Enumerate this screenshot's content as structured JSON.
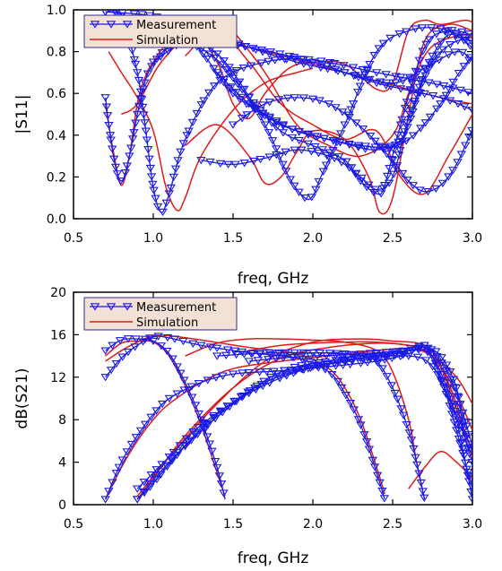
{
  "colors": {
    "measurement": "#1a1ae6",
    "simulation": "#e01b1b",
    "legend_bg": "#f3e1d6"
  },
  "chart_data": [
    {
      "type": "line",
      "xlabel": "freq, GHz",
      "ylabel": "|S11|",
      "xlim": [
        0.5,
        3.0
      ],
      "ylim": [
        0.0,
        1.0
      ],
      "xticks": [
        0.5,
        1.0,
        1.5,
        2.0,
        2.5,
        3.0
      ],
      "yticks": [
        0.0,
        0.2,
        0.4,
        0.6,
        0.8,
        1.0
      ],
      "xtick_labels": [
        "0.5",
        "1.0",
        "1.5",
        "2.0",
        "2.5",
        "3.0"
      ],
      "ytick_labels": [
        "0.0",
        "0.2",
        "0.4",
        "0.6",
        "0.8",
        "1.0"
      ],
      "legend": {
        "placement": "top-left",
        "entries": [
          "Measurement",
          "Simulation"
        ]
      },
      "series": [
        {
          "kind": "measurement",
          "x": [
            0.7,
            0.75,
            0.8,
            0.85,
            0.9,
            0.95,
            1.0,
            1.1,
            1.3,
            1.6,
            2.0,
            2.4,
            2.8,
            3.0
          ],
          "y": [
            0.58,
            0.3,
            0.18,
            0.3,
            0.5,
            0.66,
            0.74,
            0.82,
            0.85,
            0.82,
            0.75,
            0.65,
            0.58,
            0.52
          ]
        },
        {
          "kind": "measurement",
          "x": [
            0.7,
            0.8,
            0.9,
            0.95,
            1.0,
            1.05,
            1.1,
            1.2,
            1.4,
            1.7,
            2.0,
            2.4,
            2.8,
            3.0
          ],
          "y": [
            0.99,
            0.97,
            0.7,
            0.44,
            0.15,
            0.03,
            0.12,
            0.38,
            0.65,
            0.75,
            0.76,
            0.7,
            0.64,
            0.6
          ]
        },
        {
          "kind": "measurement",
          "x": [
            0.7,
            1.0,
            1.3,
            1.6,
            1.9,
            2.2,
            2.5,
            2.7,
            2.9,
            3.0
          ],
          "y": [
            0.99,
            0.97,
            0.9,
            0.82,
            0.75,
            0.7,
            0.65,
            0.72,
            0.8,
            0.76
          ]
        },
        {
          "kind": "measurement",
          "x": [
            1.0,
            1.2,
            1.3,
            1.5,
            1.7,
            1.9,
            2.1,
            2.3,
            2.5,
            2.6,
            2.7,
            2.85,
            3.0
          ],
          "y": [
            0.75,
            0.85,
            0.8,
            0.6,
            0.5,
            0.42,
            0.38,
            0.35,
            0.35,
            0.45,
            0.7,
            0.88,
            0.82
          ]
        },
        {
          "kind": "measurement",
          "x": [
            1.2,
            1.35,
            1.5,
            1.7,
            1.85,
            1.95,
            2.0,
            2.05,
            2.2,
            2.4,
            2.6,
            2.8,
            3.0
          ],
          "y": [
            0.85,
            0.82,
            0.7,
            0.45,
            0.2,
            0.1,
            0.11,
            0.2,
            0.45,
            0.8,
            0.9,
            0.91,
            0.85
          ]
        },
        {
          "kind": "measurement",
          "x": [
            1.2,
            1.4,
            1.6,
            1.8,
            2.0,
            2.2,
            2.3,
            2.4,
            2.45,
            2.55,
            2.7,
            2.85,
            3.0
          ],
          "y": [
            0.86,
            0.76,
            0.58,
            0.42,
            0.35,
            0.28,
            0.18,
            0.12,
            0.16,
            0.45,
            0.82,
            0.9,
            0.88
          ]
        },
        {
          "kind": "measurement",
          "x": [
            1.5,
            1.7,
            1.9,
            2.1,
            2.3,
            2.5,
            2.6,
            2.7,
            2.8,
            2.9,
            3.0
          ],
          "y": [
            0.45,
            0.55,
            0.58,
            0.55,
            0.44,
            0.28,
            0.18,
            0.13,
            0.16,
            0.26,
            0.43
          ]
        },
        {
          "kind": "measurement",
          "x": [
            1.3,
            1.5,
            1.7,
            1.9,
            2.1,
            2.2,
            2.3,
            2.4,
            2.5,
            2.6,
            2.75,
            2.9,
            3.0
          ],
          "y": [
            0.28,
            0.26,
            0.29,
            0.33,
            0.3,
            0.26,
            0.2,
            0.14,
            0.2,
            0.48,
            0.75,
            0.85,
            0.85
          ]
        },
        {
          "kind": "measurement",
          "x": [
            1.4,
            1.6,
            1.8,
            2.0,
            2.2,
            2.4,
            2.6,
            2.8,
            2.9,
            3.0
          ],
          "y": [
            0.7,
            0.55,
            0.45,
            0.4,
            0.36,
            0.33,
            0.38,
            0.55,
            0.68,
            0.78
          ]
        },
        {
          "kind": "simulation",
          "x": [
            0.7,
            0.75,
            0.8,
            0.85,
            0.9,
            0.95,
            1.0,
            1.1,
            1.3,
            1.6,
            2.0,
            2.4,
            2.8,
            3.0
          ],
          "y": [
            0.55,
            0.32,
            0.16,
            0.3,
            0.55,
            0.68,
            0.75,
            0.84,
            0.86,
            0.82,
            0.74,
            0.66,
            0.58,
            0.55
          ]
        },
        {
          "kind": "simulation",
          "x": [
            0.72,
            0.8,
            0.9,
            1.0,
            1.08,
            1.15,
            1.2,
            1.3,
            1.5,
            1.7,
            1.9,
            2.0
          ],
          "y": [
            0.8,
            0.7,
            0.58,
            0.42,
            0.15,
            0.04,
            0.1,
            0.3,
            0.52,
            0.65,
            0.7,
            0.72
          ]
        },
        {
          "kind": "simulation",
          "x": [
            0.8,
            0.9,
            1.05,
            1.25,
            1.4,
            1.5,
            1.6,
            1.7,
            1.85,
            2.0,
            2.2,
            2.4,
            2.5,
            2.6,
            2.7,
            2.8,
            2.95,
            3.0
          ],
          "y": [
            0.5,
            0.55,
            0.75,
            0.88,
            0.75,
            0.55,
            0.48,
            0.6,
            0.72,
            0.75,
            0.74,
            0.62,
            0.65,
            0.9,
            0.95,
            0.93,
            0.95,
            0.94
          ]
        },
        {
          "kind": "simulation",
          "x": [
            1.2,
            1.4,
            1.6,
            1.7,
            1.8,
            1.9,
            2.0,
            2.2,
            2.35,
            2.42,
            2.5,
            2.6,
            2.7,
            2.85,
            3.0
          ],
          "y": [
            0.35,
            0.45,
            0.3,
            0.17,
            0.2,
            0.32,
            0.42,
            0.38,
            0.2,
            0.03,
            0.1,
            0.5,
            0.85,
            0.93,
            0.9
          ]
        },
        {
          "kind": "simulation",
          "x": [
            1.2,
            1.4,
            1.6,
            1.8,
            2.0,
            2.2,
            2.4,
            2.55,
            2.7,
            2.85,
            3.0
          ],
          "y": [
            0.78,
            0.9,
            0.75,
            0.55,
            0.45,
            0.38,
            0.42,
            0.2,
            0.12,
            0.3,
            0.5
          ]
        },
        {
          "kind": "simulation",
          "x": [
            1.5,
            1.7,
            1.9,
            2.1,
            2.3,
            2.5,
            2.6,
            2.7,
            2.8,
            2.95,
            3.0
          ],
          "y": [
            0.9,
            0.7,
            0.45,
            0.35,
            0.3,
            0.4,
            0.6,
            0.78,
            0.85,
            0.88,
            0.87
          ]
        }
      ]
    },
    {
      "type": "line",
      "xlabel": "freq, GHz",
      "ylabel": "dB(S21)",
      "xlim": [
        0.5,
        3.0
      ],
      "ylim": [
        0,
        20
      ],
      "xticks": [
        0.5,
        1.0,
        1.5,
        2.0,
        2.5,
        3.0
      ],
      "yticks": [
        0,
        4,
        8,
        12,
        16,
        20
      ],
      "xtick_labels": [
        "0.5",
        "1.0",
        "1.5",
        "2.0",
        "2.5",
        "3.0"
      ],
      "ytick_labels": [
        "0",
        "4",
        "8",
        "12",
        "16",
        "20"
      ],
      "legend": {
        "placement": "top-left",
        "entries": [
          "Measurement",
          "Simulation"
        ]
      },
      "series": [
        {
          "kind": "measurement",
          "x": [
            0.7,
            0.8,
            0.9,
            1.0,
            1.1,
            1.2,
            1.3,
            1.4,
            1.45
          ],
          "y": [
            14.5,
            15.5,
            15.6,
            15.4,
            14.2,
            11.5,
            8.0,
            3.5,
            0.5
          ]
        },
        {
          "kind": "measurement",
          "x": [
            0.7,
            0.8,
            0.9,
            1.0,
            1.1,
            1.3,
            1.6,
            1.9,
            2.1,
            2.2,
            2.3,
            2.4,
            2.45
          ],
          "y": [
            12.0,
            13.8,
            15.0,
            15.8,
            15.7,
            15.0,
            14.3,
            13.8,
            12.5,
            10.5,
            7.5,
            3.0,
            0.5
          ]
        },
        {
          "kind": "measurement",
          "x": [
            0.7,
            0.8,
            0.9,
            1.0,
            1.1,
            1.3,
            1.5,
            1.8,
            2.1,
            2.4,
            2.6,
            2.75,
            2.9,
            3.0
          ],
          "y": [
            0.5,
            4.0,
            6.5,
            8.5,
            10.0,
            11.5,
            12.3,
            12.6,
            13.0,
            13.5,
            14.0,
            13.0,
            8.5,
            5.0
          ]
        },
        {
          "kind": "measurement",
          "x": [
            0.9,
            1.0,
            1.2,
            1.5,
            1.8,
            2.1,
            2.4,
            2.6,
            2.7,
            2.8,
            2.9,
            3.0
          ],
          "y": [
            0.5,
            2.0,
            5.5,
            9.5,
            12.5,
            13.5,
            13.9,
            14.2,
            15.0,
            13.5,
            10.5,
            5.5
          ]
        },
        {
          "kind": "measurement",
          "x": [
            0.9,
            1.1,
            1.4,
            1.7,
            2.0,
            2.3,
            2.5,
            2.7,
            2.8,
            2.9,
            3.0
          ],
          "y": [
            0.5,
            4.0,
            8.5,
            11.5,
            13.0,
            13.8,
            14.2,
            14.5,
            12.5,
            8.0,
            0.5
          ]
        },
        {
          "kind": "measurement",
          "x": [
            0.9,
            1.1,
            1.3,
            1.6,
            1.9,
            2.2,
            2.5,
            2.7,
            2.8,
            2.9,
            3.0
          ],
          "y": [
            1.5,
            4.5,
            7.5,
            10.5,
            12.5,
            13.5,
            14.2,
            14.8,
            12.0,
            7.0,
            1.5
          ]
        },
        {
          "kind": "measurement",
          "x": [
            1.4,
            1.6,
            1.8,
            2.0,
            2.2,
            2.3,
            2.4,
            2.5,
            2.6,
            2.65,
            2.7
          ],
          "y": [
            14.0,
            14.2,
            14.3,
            14.3,
            14.2,
            14.0,
            13.5,
            11.0,
            7.0,
            4.0,
            0.5
          ]
        },
        {
          "kind": "measurement",
          "x": [
            1.6,
            1.8,
            2.0,
            2.2,
            2.4,
            2.6,
            2.7,
            2.8,
            2.9,
            2.95,
            3.0
          ],
          "y": [
            13.5,
            13.8,
            14.0,
            14.1,
            14.3,
            14.5,
            14.8,
            14.0,
            11.0,
            6.5,
            4.0
          ]
        },
        {
          "kind": "simulation",
          "x": [
            0.7,
            0.8,
            0.9,
            1.0,
            1.1,
            1.2,
            1.3,
            1.4,
            1.45
          ],
          "y": [
            14.0,
            15.2,
            15.4,
            15.3,
            14.0,
            11.2,
            7.5,
            3.0,
            0.8
          ]
        },
        {
          "kind": "simulation",
          "x": [
            0.7,
            0.8,
            0.9,
            1.0,
            1.1,
            1.3,
            1.6,
            1.9,
            2.1,
            2.2,
            2.3,
            2.4,
            2.45
          ],
          "y": [
            13.5,
            14.5,
            15.3,
            15.9,
            15.9,
            15.5,
            14.8,
            14.2,
            12.8,
            11.0,
            8.0,
            3.5,
            1.0
          ]
        },
        {
          "kind": "simulation",
          "x": [
            0.7,
            0.8,
            0.9,
            1.0,
            1.1,
            1.3,
            1.5,
            1.8,
            2.1,
            2.4,
            2.6,
            2.75,
            2.9,
            3.0
          ],
          "y": [
            0.5,
            3.5,
            6.0,
            8.0,
            9.5,
            11.5,
            12.8,
            13.5,
            14.0,
            14.5,
            14.7,
            14.0,
            12.0,
            9.5
          ]
        },
        {
          "kind": "simulation",
          "x": [
            0.9,
            1.0,
            1.2,
            1.5,
            1.8,
            2.1,
            2.4,
            2.6,
            2.7,
            2.8,
            2.9,
            3.0
          ],
          "y": [
            0.5,
            2.5,
            6.5,
            11.0,
            13.8,
            14.8,
            15.2,
            15.0,
            14.5,
            13.0,
            10.5,
            7.0
          ]
        },
        {
          "kind": "simulation",
          "x": [
            0.9,
            1.1,
            1.4,
            1.7,
            2.0,
            2.3,
            2.5,
            2.7,
            2.8,
            2.9,
            3.0
          ],
          "y": [
            0.8,
            4.5,
            9.5,
            13.5,
            15.3,
            15.6,
            15.4,
            15.0,
            13.0,
            9.0,
            5.0
          ]
        },
        {
          "kind": "simulation",
          "x": [
            1.2,
            1.4,
            1.6,
            1.8,
            2.0,
            2.2,
            2.4,
            2.5,
            2.6,
            2.65,
            2.7
          ],
          "y": [
            14.0,
            15.2,
            15.6,
            15.6,
            15.5,
            15.3,
            14.5,
            12.5,
            8.0,
            4.0,
            0.5
          ]
        },
        {
          "kind": "simulation",
          "x": [
            1.6,
            1.8,
            2.0,
            2.2,
            2.4,
            2.6,
            2.7,
            2.8,
            2.9,
            2.95,
            3.0
          ],
          "y": [
            14.5,
            15.0,
            15.2,
            15.3,
            15.3,
            15.0,
            14.5,
            13.0,
            9.5,
            6.5,
            4.5
          ]
        },
        {
          "kind": "simulation",
          "x": [
            2.6,
            2.7,
            2.8,
            2.9,
            3.0
          ],
          "y": [
            1.5,
            3.5,
            5.0,
            4.0,
            2.5
          ]
        }
      ]
    }
  ]
}
